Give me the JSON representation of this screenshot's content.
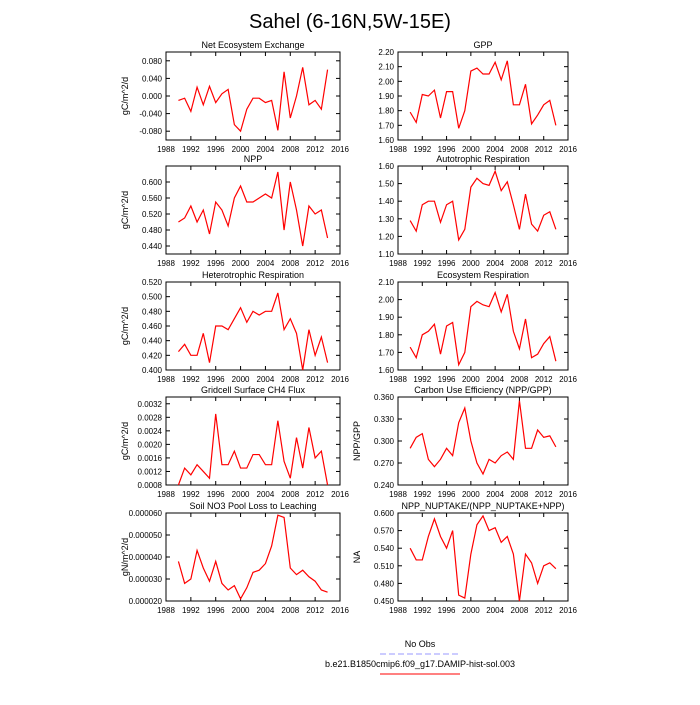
{
  "title": "Sahel (6-16N,5W-15E)",
  "legend": [
    {
      "name": "No Obs",
      "color": "#9999ff",
      "dashed": true
    },
    {
      "name": "b.e21.B1850cmip6.f09_g17.DAMIP-hist-sol.003",
      "color": "#ff0000",
      "dashed": false
    }
  ],
  "chart_data": [
    {
      "type": "line",
      "title": "Net Ecosystem Exchange",
      "ylabel": "gC/m^2/d",
      "color": "#ff0000",
      "x": [
        1990,
        1991,
        1992,
        1993,
        1994,
        1995,
        1996,
        1997,
        1998,
        1999,
        2000,
        2001,
        2002,
        2003,
        2004,
        2005,
        2006,
        2007,
        2008,
        2009,
        2010,
        2011,
        2012,
        2013,
        2014
      ],
      "values": [
        -0.01,
        -0.005,
        -0.035,
        0.02,
        -0.02,
        0.022,
        -0.015,
        0.005,
        0.015,
        -0.065,
        -0.08,
        -0.03,
        -0.005,
        -0.005,
        -0.015,
        -0.01,
        -0.078,
        0.055,
        -0.05,
        0.0,
        0.065,
        -0.02,
        -0.01,
        -0.03,
        0.06
      ],
      "xlim": [
        1988,
        2016
      ],
      "xticks": [
        1988,
        1992,
        1996,
        2000,
        2004,
        2008,
        2012,
        2016
      ],
      "ylim": [
        -0.1,
        0.1
      ],
      "yticks": [
        {
          "value": -0.08,
          "label": "-0.080"
        },
        {
          "value": -0.04,
          "label": "-0.040"
        },
        {
          "value": 0,
          "label": "0.000"
        },
        {
          "value": 0.04,
          "label": "0.040"
        },
        {
          "value": 0.08,
          "label": "0.080"
        }
      ]
    },
    {
      "type": "line",
      "title": "GPP",
      "color": "#ff0000",
      "x": [
        1990,
        1991,
        1992,
        1993,
        1994,
        1995,
        1996,
        1997,
        1998,
        1999,
        2000,
        2001,
        2002,
        2003,
        2004,
        2005,
        2006,
        2007,
        2008,
        2009,
        2010,
        2011,
        2012,
        2013,
        2014
      ],
      "values": [
        1.79,
        1.72,
        1.91,
        1.9,
        1.94,
        1.75,
        1.93,
        1.93,
        1.68,
        1.8,
        2.07,
        2.09,
        2.05,
        2.05,
        2.13,
        2.01,
        2.14,
        1.84,
        1.84,
        1.98,
        1.71,
        1.77,
        1.84,
        1.87,
        1.7
      ],
      "xlim": [
        1988,
        2016
      ],
      "xticks": [
        1988,
        1992,
        1996,
        2000,
        2004,
        2008,
        2012,
        2016
      ],
      "ylim": [
        1.6,
        2.2
      ],
      "yticks": [
        {
          "value": 1.6,
          "label": "1.60"
        },
        {
          "value": 1.7,
          "label": "1.70"
        },
        {
          "value": 1.8,
          "label": "1.80"
        },
        {
          "value": 1.9,
          "label": "1.90"
        },
        {
          "value": 2.0,
          "label": "2.00"
        },
        {
          "value": 2.1,
          "label": "2.10"
        },
        {
          "value": 2.2,
          "label": "2.20"
        }
      ]
    },
    {
      "type": "line",
      "title": "NPP",
      "ylabel": "gC/m^2/d",
      "color": "#ff0000",
      "x": [
        1990,
        1991,
        1992,
        1993,
        1994,
        1995,
        1996,
        1997,
        1998,
        1999,
        2000,
        2001,
        2002,
        2003,
        2004,
        2005,
        2006,
        2007,
        2008,
        2009,
        2010,
        2011,
        2012,
        2013,
        2014
      ],
      "values": [
        0.5,
        0.51,
        0.54,
        0.5,
        0.53,
        0.47,
        0.55,
        0.53,
        0.49,
        0.56,
        0.59,
        0.55,
        0.55,
        0.56,
        0.57,
        0.56,
        0.625,
        0.48,
        0.6,
        0.53,
        0.44,
        0.54,
        0.52,
        0.53,
        0.46
      ],
      "xlim": [
        1988,
        2016
      ],
      "xticks": [
        1988,
        1992,
        1996,
        2000,
        2004,
        2008,
        2012,
        2016
      ],
      "ylim": [
        0.42,
        0.64
      ],
      "yticks": [
        {
          "value": 0.44,
          "label": "0.440"
        },
        {
          "value": 0.48,
          "label": "0.480"
        },
        {
          "value": 0.52,
          "label": "0.520"
        },
        {
          "value": 0.56,
          "label": "0.560"
        },
        {
          "value": 0.6,
          "label": "0.600"
        }
      ]
    },
    {
      "type": "line",
      "title": "Autotrophic Respiration",
      "color": "#ff0000",
      "x": [
        1990,
        1991,
        1992,
        1993,
        1994,
        1995,
        1996,
        1997,
        1998,
        1999,
        2000,
        2001,
        2002,
        2003,
        2004,
        2005,
        2006,
        2007,
        2008,
        2009,
        2010,
        2011,
        2012,
        2013,
        2014
      ],
      "values": [
        1.29,
        1.23,
        1.38,
        1.4,
        1.4,
        1.28,
        1.38,
        1.4,
        1.18,
        1.24,
        1.48,
        1.53,
        1.5,
        1.49,
        1.57,
        1.46,
        1.51,
        1.38,
        1.24,
        1.44,
        1.27,
        1.23,
        1.32,
        1.34,
        1.24
      ],
      "xlim": [
        1988,
        2016
      ],
      "xticks": [
        1988,
        1992,
        1996,
        2000,
        2004,
        2008,
        2012,
        2016
      ],
      "ylim": [
        1.1,
        1.6
      ],
      "yticks": [
        {
          "value": 1.1,
          "label": "1.10"
        },
        {
          "value": 1.2,
          "label": "1.20"
        },
        {
          "value": 1.3,
          "label": "1.30"
        },
        {
          "value": 1.4,
          "label": "1.40"
        },
        {
          "value": 1.5,
          "label": "1.50"
        },
        {
          "value": 1.6,
          "label": "1.60"
        }
      ]
    },
    {
      "type": "line",
      "title": "Heterotrophic Respiration",
      "ylabel": "gC/m^2/d",
      "color": "#ff0000",
      "x": [
        1990,
        1991,
        1992,
        1993,
        1994,
        1995,
        1996,
        1997,
        1998,
        1999,
        2000,
        2001,
        2002,
        2003,
        2004,
        2005,
        2006,
        2007,
        2008,
        2009,
        2010,
        2011,
        2012,
        2013,
        2014
      ],
      "values": [
        0.425,
        0.435,
        0.42,
        0.42,
        0.45,
        0.41,
        0.46,
        0.46,
        0.455,
        0.47,
        0.485,
        0.465,
        0.48,
        0.475,
        0.48,
        0.48,
        0.505,
        0.455,
        0.47,
        0.45,
        0.4,
        0.455,
        0.42,
        0.445,
        0.41
      ],
      "xlim": [
        1988,
        2016
      ],
      "xticks": [
        1988,
        1992,
        1996,
        2000,
        2004,
        2008,
        2012,
        2016
      ],
      "ylim": [
        0.4,
        0.52
      ],
      "yticks": [
        {
          "value": 0.4,
          "label": "0.400"
        },
        {
          "value": 0.42,
          "label": "0.420"
        },
        {
          "value": 0.44,
          "label": "0.440"
        },
        {
          "value": 0.46,
          "label": "0.460"
        },
        {
          "value": 0.48,
          "label": "0.480"
        },
        {
          "value": 0.5,
          "label": "0.500"
        },
        {
          "value": 0.52,
          "label": "0.520"
        }
      ]
    },
    {
      "type": "line",
      "title": "Ecosystem Respiration",
      "color": "#ff0000",
      "x": [
        1990,
        1991,
        1992,
        1993,
        1994,
        1995,
        1996,
        1997,
        1998,
        1999,
        2000,
        2001,
        2002,
        2003,
        2004,
        2005,
        2006,
        2007,
        2008,
        2009,
        2010,
        2011,
        2012,
        2013,
        2014
      ],
      "values": [
        1.73,
        1.67,
        1.8,
        1.82,
        1.86,
        1.69,
        1.85,
        1.87,
        1.63,
        1.7,
        1.96,
        1.99,
        1.97,
        1.96,
        2.04,
        1.93,
        2.03,
        1.82,
        1.72,
        1.89,
        1.67,
        1.69,
        1.75,
        1.79,
        1.65
      ],
      "xlim": [
        1988,
        2016
      ],
      "xticks": [
        1988,
        1992,
        1996,
        2000,
        2004,
        2008,
        2012,
        2016
      ],
      "ylim": [
        1.6,
        2.1
      ],
      "yticks": [
        {
          "value": 1.6,
          "label": "1.60"
        },
        {
          "value": 1.7,
          "label": "1.70"
        },
        {
          "value": 1.8,
          "label": "1.80"
        },
        {
          "value": 1.9,
          "label": "1.90"
        },
        {
          "value": 2.0,
          "label": "2.00"
        },
        {
          "value": 2.1,
          "label": "2.10"
        }
      ]
    },
    {
      "type": "line",
      "title": "Gridcell Surface CH4 Flux",
      "ylabel": "gC/m^2/d",
      "color": "#ff0000",
      "x": [
        1990,
        1991,
        1992,
        1993,
        1994,
        1995,
        1996,
        1997,
        1998,
        1999,
        2000,
        2001,
        2002,
        2003,
        2004,
        2005,
        2006,
        2007,
        2008,
        2009,
        2010,
        2011,
        2012,
        2013,
        2014
      ],
      "values": [
        0.0008,
        0.0013,
        0.0011,
        0.0014,
        0.0012,
        0.001,
        0.0029,
        0.0014,
        0.0014,
        0.0018,
        0.0013,
        0.0013,
        0.0017,
        0.0017,
        0.0014,
        0.0014,
        0.0027,
        0.0015,
        0.001,
        0.0022,
        0.0013,
        0.0025,
        0.0016,
        0.0018,
        0.0008
      ],
      "xlim": [
        1988,
        2016
      ],
      "xticks": [
        1988,
        1992,
        1996,
        2000,
        2004,
        2008,
        2012,
        2016
      ],
      "ylim": [
        0.0008,
        0.0034
      ],
      "yticks": [
        0.0008,
        0.0012,
        0.0016,
        {
          "value": 0.002,
          "label": "0.0020"
        },
        0.0024,
        0.0028,
        0.0032
      ]
    },
    {
      "type": "line",
      "title": "Carbon Use Efficiency (NPP/GPP)",
      "ylabel": "NPP/GPP",
      "color": "#ff0000",
      "x": [
        1990,
        1991,
        1992,
        1993,
        1994,
        1995,
        1996,
        1997,
        1998,
        1999,
        2000,
        2001,
        2002,
        2003,
        2004,
        2005,
        2006,
        2007,
        2008,
        2009,
        2010,
        2011,
        2012,
        2013,
        2014
      ],
      "values": [
        0.29,
        0.305,
        0.31,
        0.275,
        0.265,
        0.275,
        0.29,
        0.28,
        0.325,
        0.345,
        0.3,
        0.27,
        0.255,
        0.275,
        0.27,
        0.28,
        0.285,
        0.275,
        0.355,
        0.29,
        0.29,
        0.315,
        0.305,
        0.307,
        0.292
      ],
      "xlim": [
        1988,
        2016
      ],
      "xticks": [
        1988,
        1992,
        1996,
        2000,
        2004,
        2008,
        2012,
        2016
      ],
      "ylim": [
        0.24,
        0.36
      ],
      "yticks": [
        {
          "value": 0.24,
          "label": "0.240"
        },
        {
          "value": 0.27,
          "label": "0.270"
        },
        {
          "value": 0.3,
          "label": "0.300"
        },
        {
          "value": 0.33,
          "label": "0.330"
        },
        {
          "value": 0.36,
          "label": "0.360"
        }
      ]
    },
    {
      "type": "line",
      "title": "Soil NO3 Pool Loss to Leaching",
      "ylabel": "gN/m^2/d",
      "color": "#ff0000",
      "x": [
        1990,
        1991,
        1992,
        1993,
        1994,
        1995,
        1996,
        1997,
        1998,
        1999,
        2000,
        2001,
        2002,
        2003,
        2004,
        2005,
        2006,
        2007,
        2008,
        2009,
        2010,
        2011,
        2012,
        2013,
        2014
      ],
      "values": [
        3.8e-05,
        2.8e-05,
        3e-05,
        4.3e-05,
        3.5e-05,
        2.9e-05,
        3.8e-05,
        2.8e-05,
        2.5e-05,
        2.7e-05,
        2.1e-05,
        2.6e-05,
        3.3e-05,
        3.4e-05,
        3.7e-05,
        4.5e-05,
        5.9e-05,
        5.8e-05,
        3.5e-05,
        3.2e-05,
        3.4e-05,
        3.1e-05,
        2.9e-05,
        2.5e-05,
        2.4e-05
      ],
      "xlim": [
        1988,
        2016
      ],
      "xticks": [
        1988,
        1992,
        1996,
        2000,
        2004,
        2008,
        2012,
        2016
      ],
      "ylim": [
        2e-05,
        6e-05
      ],
      "yticks": [
        {
          "value": 2e-05,
          "label": "0.000020"
        },
        {
          "value": 3e-05,
          "label": "0.000030"
        },
        {
          "value": 4e-05,
          "label": "0.000040"
        },
        {
          "value": 5e-05,
          "label": "0.000050"
        },
        {
          "value": 6e-05,
          "label": "0.000060"
        }
      ]
    },
    {
      "type": "line",
      "title": "NPP_NUPTAKE/(NPP_NUPTAKE+NPP)",
      "ylabel": "NA",
      "color": "#ff0000",
      "x": [
        1990,
        1991,
        1992,
        1993,
        1994,
        1995,
        1996,
        1997,
        1998,
        1999,
        2000,
        2001,
        2002,
        2003,
        2004,
        2005,
        2006,
        2007,
        2008,
        2009,
        2010,
        2011,
        2012,
        2013,
        2014
      ],
      "values": [
        0.54,
        0.52,
        0.52,
        0.56,
        0.59,
        0.56,
        0.54,
        0.57,
        0.46,
        0.455,
        0.53,
        0.58,
        0.595,
        0.57,
        0.575,
        0.55,
        0.56,
        0.53,
        0.45,
        0.53,
        0.515,
        0.48,
        0.51,
        0.515,
        0.505
      ],
      "xlim": [
        1988,
        2016
      ],
      "xticks": [
        1988,
        1992,
        1996,
        2000,
        2004,
        2008,
        2012,
        2016
      ],
      "ylim": [
        0.45,
        0.6
      ],
      "yticks": [
        {
          "value": 0.45,
          "label": "0.450"
        },
        {
          "value": 0.48,
          "label": "0.480"
        },
        {
          "value": 0.51,
          "label": "0.510"
        },
        {
          "value": 0.54,
          "label": "0.540"
        },
        {
          "value": 0.57,
          "label": "0.570"
        },
        {
          "value": 0.6,
          "label": "0.600"
        }
      ]
    }
  ]
}
